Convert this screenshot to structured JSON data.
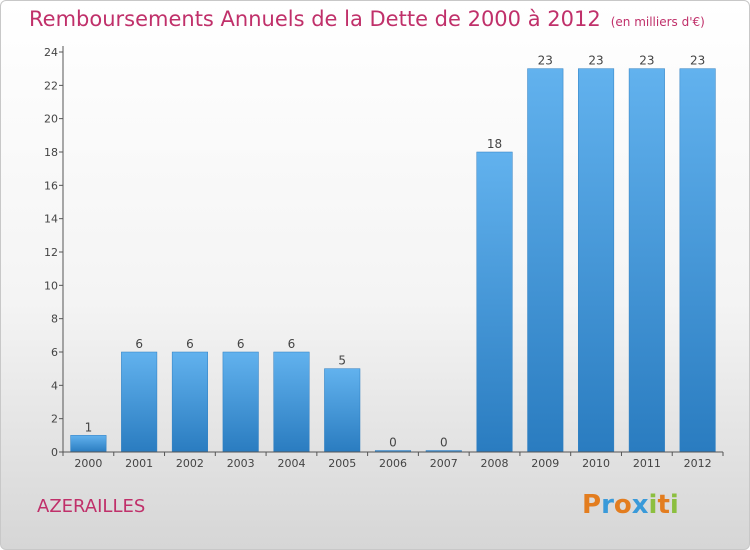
{
  "title": "Remboursements Annuels de la Dette de 2000 à 2012",
  "unit_note": "(en milliers d'€)",
  "commune": "AZERAILLES",
  "logo": {
    "text": "Proxiti",
    "letters": [
      {
        "char": "P",
        "color": "#e37d1f"
      },
      {
        "char": "r",
        "color": "#3a9ad9"
      },
      {
        "char": "o",
        "color": "#e37d1f"
      },
      {
        "char": "x",
        "color": "#3a9ad9"
      },
      {
        "char": "i",
        "color": "#8cbf3f"
      },
      {
        "char": "t",
        "color": "#e37d1f"
      },
      {
        "char": "i",
        "color": "#8cbf3f"
      }
    ]
  },
  "colors": {
    "bar_top": "#62b2ee",
    "bar_bottom": "#2a7cc0",
    "title": "#c0306a",
    "axis_text": "#444444"
  },
  "chart_data": {
    "type": "bar",
    "title": "Remboursements Annuels de la Dette de 2000 à 2012",
    "categories": [
      "2000",
      "2001",
      "2002",
      "2003",
      "2004",
      "2005",
      "2006",
      "2007",
      "2008",
      "2009",
      "2010",
      "2011",
      "2012"
    ],
    "values": [
      1,
      6,
      6,
      6,
      6,
      5,
      0,
      0,
      18,
      23,
      23,
      23,
      23
    ],
    "data_labels": [
      "1",
      "6",
      "6",
      "6",
      "6",
      "5",
      "0",
      "0",
      "18",
      "23",
      "23",
      "23",
      "23"
    ],
    "yticks": [
      "0",
      "2",
      "4",
      "6",
      "8",
      "10",
      "12",
      "14",
      "16",
      "18",
      "20",
      "22",
      "24"
    ],
    "ylim": [
      0,
      24
    ],
    "grid": false,
    "legend": "none"
  }
}
